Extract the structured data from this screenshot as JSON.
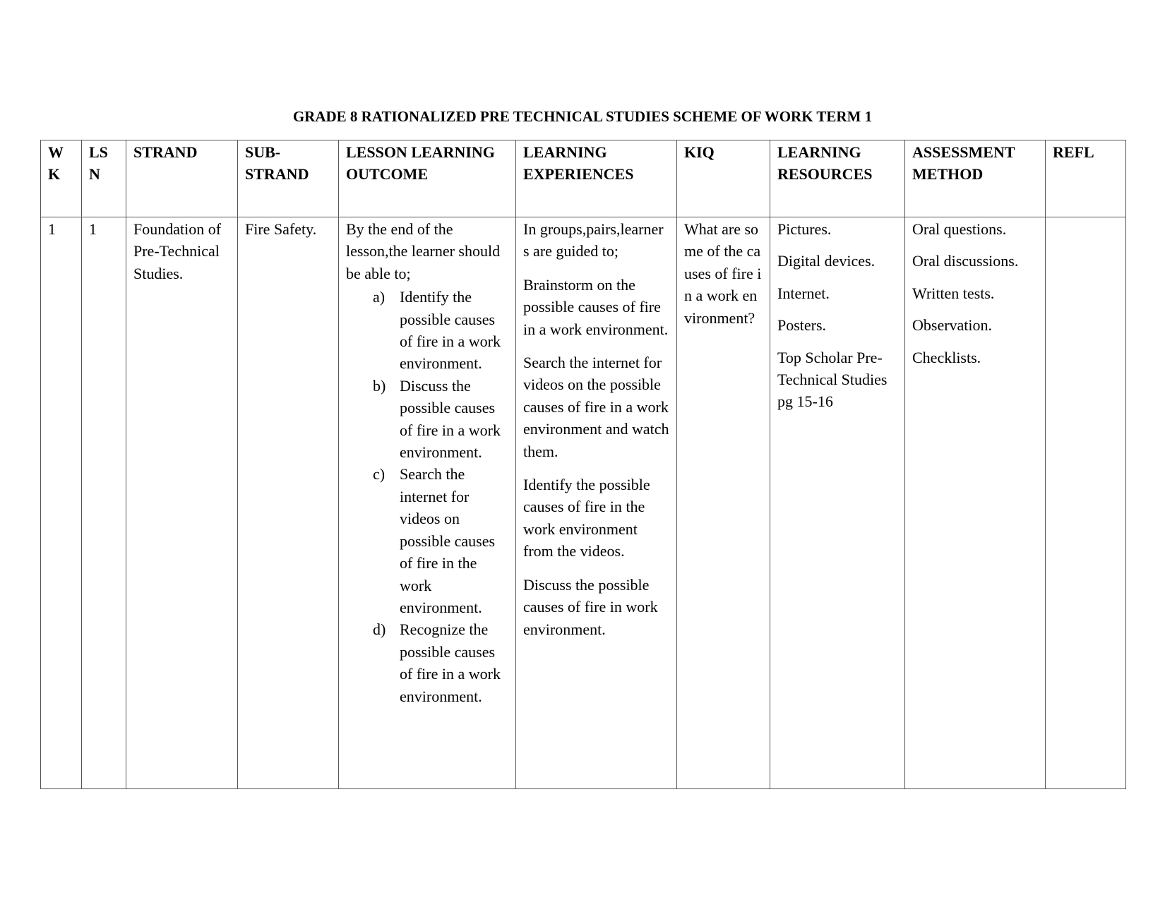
{
  "title": "GRADE 8 RATIONALIZED PRE TECHNICAL STUDIES SCHEME OF WORK TERM 1",
  "headers": [
    "W K",
    "LS N",
    "STRAND",
    "SUB-STRAND",
    "LESSON LEARNING OUTCOME",
    "LEARNING EXPERIENCES",
    "KIQ",
    "LEARNING RESOURCES",
    "ASSESSMENT METHOD",
    "REFL"
  ],
  "row": {
    "wk": "1",
    "lsn": "1",
    "strand": "Foundation of Pre-Technical Studies.",
    "sub_strand": "Fire Safety.",
    "outcome_intro": "By the end of the lesson,the learner should be able to;",
    "outcomes": [
      {
        "label": "a)",
        "text": "Identify the possible causes of fire in a work environment."
      },
      {
        "label": "b)",
        "text": "Discuss the possible causes of fire in a work environment."
      },
      {
        "label": "c)",
        "text": "Search the internet for videos on possible causes of fire in the work environment."
      },
      {
        "label": "d)",
        "text": "Recognize the possible causes of fire in a work environment."
      }
    ],
    "experiences": [
      "In groups,pairs,learners are guided to;",
      "Brainstorm on the possible causes of fire in a work environment.",
      "Search the internet for videos on the possible causes of fire in a work environment and watch them.",
      "Identify the possible causes of fire in the work environment from the videos.",
      "Discuss the possible causes of fire in work environment."
    ],
    "kiq": "What are some of the causes of fire in a work environment?",
    "resources": [
      "Pictures.",
      "Digital devices.",
      "Internet.",
      "Posters.",
      "Top Scholar Pre-Technical Studies pg 15-16"
    ],
    "assessment": [
      "Oral questions.",
      "Oral discussions.",
      "Written tests.",
      "Observation.",
      "Checklists."
    ],
    "refl": ""
  }
}
